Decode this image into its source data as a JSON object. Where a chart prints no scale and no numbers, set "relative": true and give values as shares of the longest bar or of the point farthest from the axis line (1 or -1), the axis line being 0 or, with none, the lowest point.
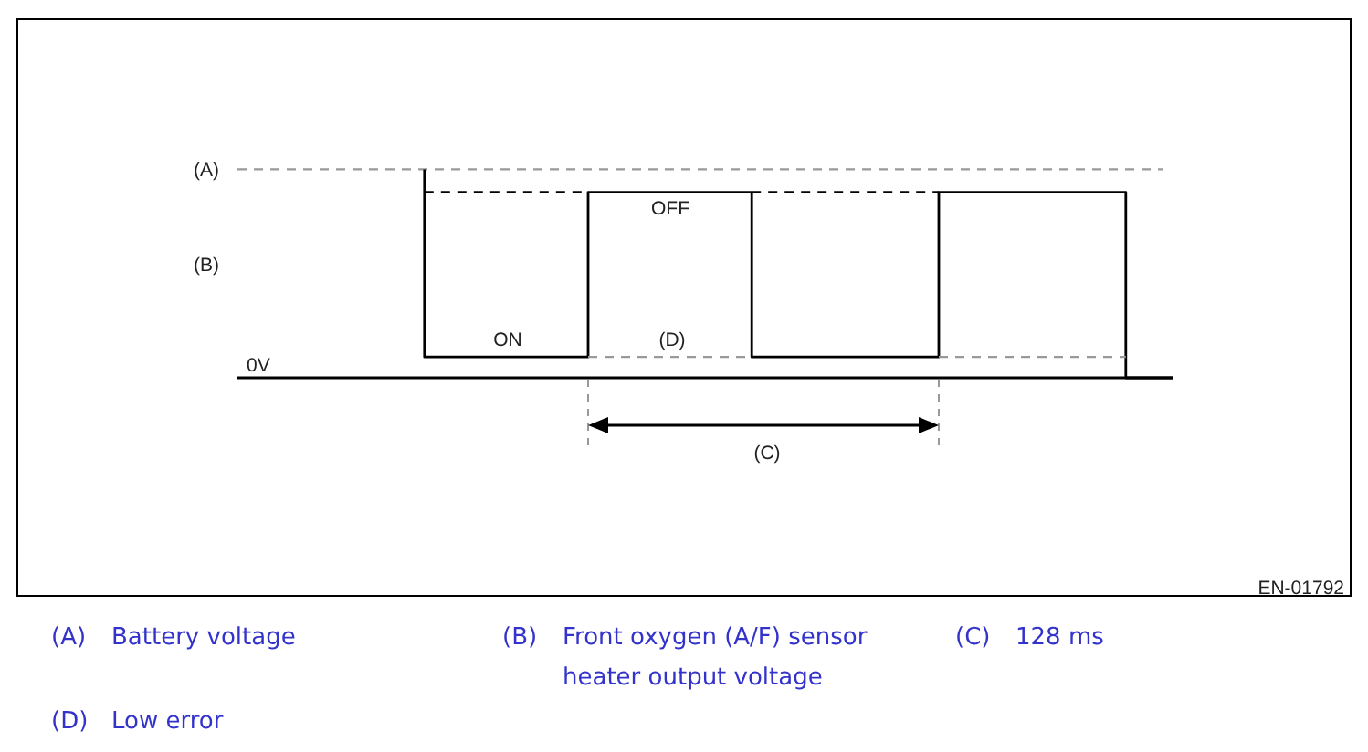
{
  "chart_data": {
    "type": "step",
    "relative": true,
    "categories": [
      null,
      null,
      null,
      null,
      null,
      null,
      null,
      null,
      null,
      null,
      null,
      null,
      null,
      null,
      null,
      null,
      null,
      null,
      null,
      null,
      null,
      null,
      null,
      null,
      null,
      null,
      null,
      null,
      null,
      null,
      null,
      null,
      null,
      null,
      null,
      null,
      null,
      null,
      null,
      null,
      null
    ],
    "series": [
      {
        "color": "#000000",
        "values": [
          null,
          null,
          null,
          null,
          null,
          null,
          null,
          null,
          1,
          0.1,
          0.1,
          0.1,
          0.1,
          0.1,
          0.1,
          0.1,
          0.89,
          0.89,
          0.89,
          0.89,
          0.89,
          0.89,
          0.89,
          0.1,
          0.1,
          0.1,
          0.1,
          0.1,
          0.1,
          0.1,
          0.1,
          0.89,
          0.89,
          0.89,
          0.89,
          0.89,
          0.89,
          0.89,
          0.89,
          0,
          0
        ]
      },
      {
        "type": "line",
        "line_style": "dashed",
        "color": "#000000",
        "values": [
          null,
          null,
          null,
          null,
          null,
          null,
          null,
          null,
          0.89,
          0.89,
          0.89,
          0.89,
          0.89,
          0.89,
          0.89,
          0.89,
          null,
          null,
          null,
          null,
          null,
          null,
          0.89,
          0.89,
          0.89,
          0.89,
          0.89,
          0.89,
          0.89,
          0.89,
          0.89,
          null,
          null,
          null,
          null,
          null,
          null,
          null,
          null,
          null,
          null
        ]
      },
      {
        "type": "line",
        "line_style": "dashed",
        "color": "#999999",
        "values": [
          null,
          null,
          null,
          null,
          null,
          null,
          null,
          null,
          null,
          null,
          null,
          null,
          null,
          null,
          null,
          0.1,
          0.1,
          0.1,
          0.1,
          0.1,
          0.1,
          0.1,
          0.1,
          null,
          null,
          null,
          null,
          null,
          null,
          null,
          0.1,
          0.1,
          0.1,
          0.1,
          0.1,
          0.1,
          0.1,
          0.1,
          0.1,
          null,
          null
        ]
      }
    ],
    "ref_lines": [
      {
        "axis": "y",
        "value": 1,
        "label": "(A)",
        "color": "#999999",
        "line_style": "dashed"
      }
    ],
    "annotations": [
      "(B)",
      "OFF",
      "ON",
      "(D)",
      "0V",
      "(C)",
      "EN-01792",
      "(A) Battery voltage",
      "(B) Front oxygen (A/F) sensor heater output voltage",
      "(C) 128 ms",
      "(D) Low error"
    ]
  }
}
